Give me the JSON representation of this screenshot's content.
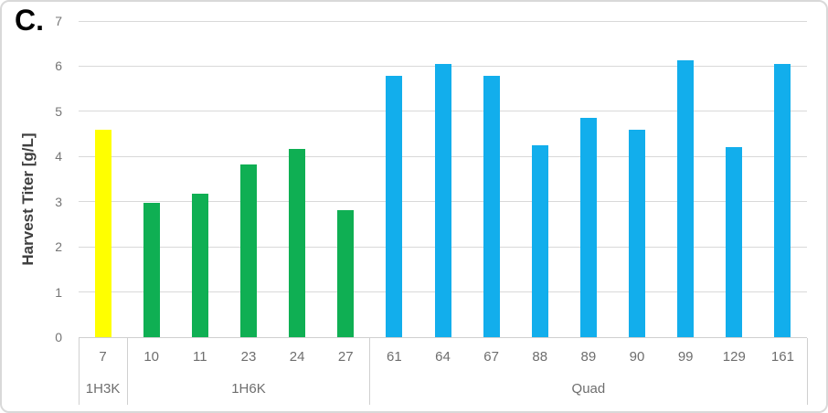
{
  "panel_label": "C.",
  "chart_data": {
    "type": "bar",
    "title": "",
    "xlabel": "",
    "ylabel": "Harvest Titer [g/L]",
    "ylim": [
      0,
      7
    ],
    "y_ticks": [
      0,
      1,
      2,
      3,
      4,
      5,
      6,
      7
    ],
    "grid": "horizontal",
    "legend": "none",
    "gridline_color": "#d9d9d9",
    "axis_text_color": "#757575",
    "groups": [
      {
        "label": "1H3K",
        "color": "#ffff00",
        "categories": [
          "7"
        ],
        "values": [
          4.6
        ]
      },
      {
        "label": "1H6K",
        "color": "#0faf53",
        "categories": [
          "10",
          "11",
          "23",
          "24",
          "27"
        ],
        "values": [
          2.97,
          3.18,
          3.82,
          4.17,
          2.82
        ]
      },
      {
        "label": "Quad",
        "color": "#12aeec",
        "categories": [
          "61",
          "64",
          "67",
          "88",
          "89",
          "90",
          "99",
          "129",
          "161"
        ],
        "values": [
          5.78,
          6.05,
          5.78,
          4.24,
          4.85,
          4.59,
          6.13,
          4.2,
          6.04
        ]
      }
    ]
  }
}
